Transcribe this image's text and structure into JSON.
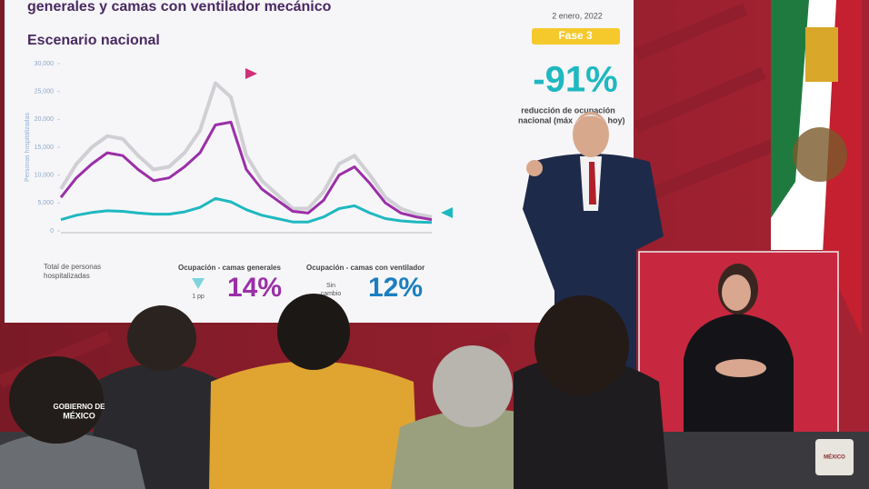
{
  "header": {
    "title": "generales y camas con ventilador mecánico",
    "date": "2 enero, 2022",
    "subtitle": "Escenario nacional",
    "phase": "Fase 3"
  },
  "summary": {
    "value": "-91%",
    "lines": [
      "reducción de ocupación",
      "nacional (máx",
      "hoy)"
    ]
  },
  "chart_data": {
    "type": "line",
    "y_label": "Personas hospitalizadas",
    "ylim": [
      0,
      30000
    ],
    "yticks": [
      0,
      {
        "value": 5000,
        "label": "5,000"
      },
      {
        "value": 10000,
        "label": "10,000"
      },
      {
        "value": 15000,
        "label": "15,000"
      },
      {
        "value": 20000,
        "label": "20,000"
      },
      {
        "value": 25000,
        "label": "25,000"
      },
      {
        "value": 30000,
        "label": "30,000"
      }
    ],
    "series": [
      {
        "color": "#cfcfd4",
        "values": [
          7500,
          12000,
          15000,
          17000,
          16500,
          13500,
          11000,
          11500,
          14000,
          18000,
          26500,
          24000,
          13500,
          9000,
          6500,
          4000,
          4000,
          7000,
          12000,
          13500,
          10000,
          6000,
          4000,
          3000,
          2500
        ]
      },
      {
        "color": "#9b2fa8",
        "values": [
          6000,
          9500,
          12000,
          14000,
          13500,
          11000,
          9000,
          9500,
          11500,
          14000,
          19000,
          19500,
          11000,
          7500,
          5500,
          3500,
          3200,
          5500,
          10000,
          11500,
          8500,
          5000,
          3200,
          2500,
          2000
        ]
      },
      {
        "color": "#1fb8c0",
        "values": [
          2000,
          2800,
          3300,
          3600,
          3500,
          3200,
          3000,
          3000,
          3400,
          4200,
          5800,
          5200,
          3800,
          2800,
          2200,
          1600,
          1600,
          2500,
          4000,
          4500,
          3200,
          2200,
          1800,
          1600,
          1500
        ]
      }
    ]
  },
  "footer": {
    "total_label": [
      "Total de personas",
      "hospitalizadas"
    ],
    "general_label": "Ocupación - camas generales",
    "general_change": "1 pp",
    "general_value": "14%",
    "vent_label": "Ocupación - camas con ventilador",
    "vent_change": [
      "Sin",
      "cambio"
    ],
    "vent_value": "12%"
  },
  "logo": [
    "GOBIERNO DE",
    "MÉXICO"
  ]
}
